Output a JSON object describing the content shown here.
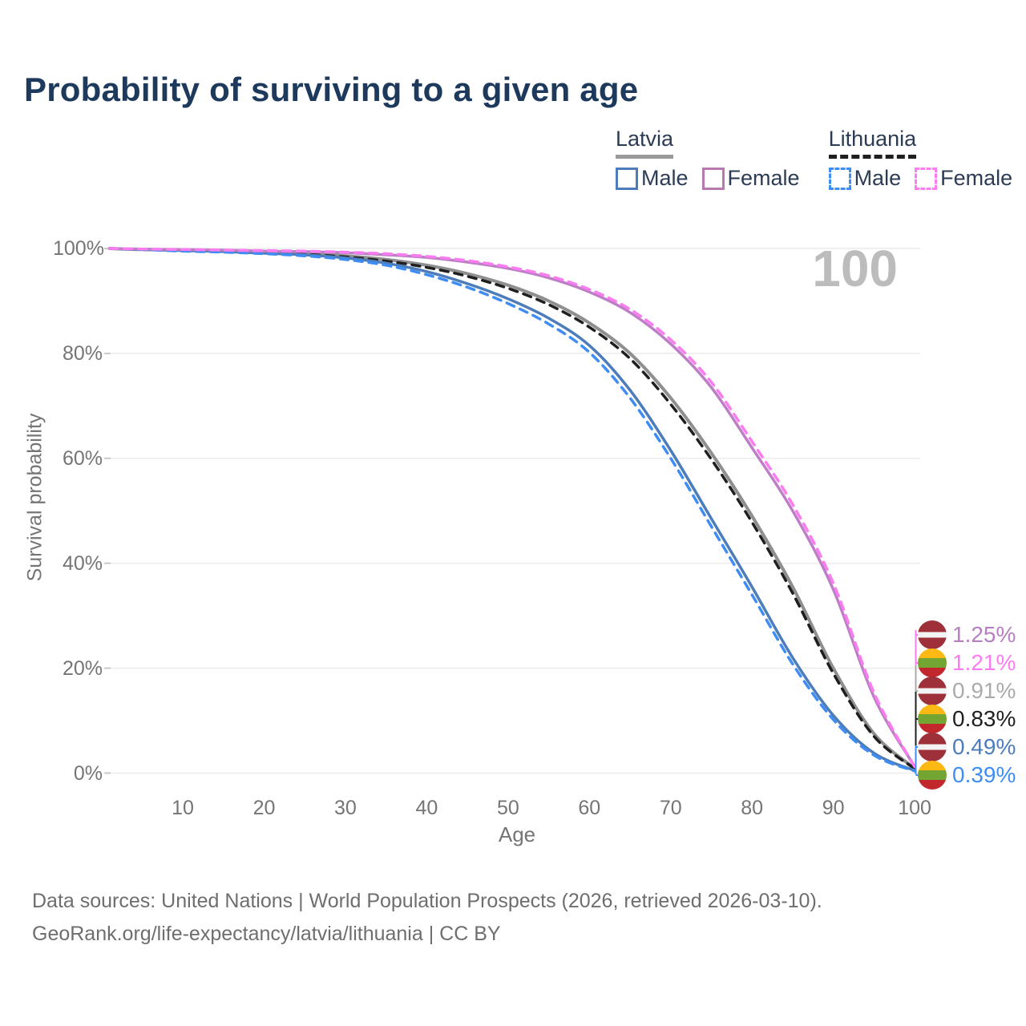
{
  "title": "Probability of surviving to a given age",
  "watermark_age": "100",
  "legend": {
    "groups": [
      {
        "label": "Latvia",
        "line_style": "solid",
        "line_color": "#9a9a9a",
        "items": [
          {
            "label": "Male",
            "color": "#4d7cba",
            "dash": false
          },
          {
            "label": "Female",
            "color": "#b878b0",
            "dash": false
          }
        ]
      },
      {
        "label": "Lithuania",
        "line_style": "dashed",
        "line_color": "#1f1f1f",
        "items": [
          {
            "label": "Male",
            "color": "#3f8df4",
            "dash": true
          },
          {
            "label": "Female",
            "color": "#fb7cf0",
            "dash": true
          }
        ]
      }
    ]
  },
  "axes": {
    "y_title": "Survival probability",
    "x_title": "Age",
    "y_ticks": [
      {
        "label": "100%",
        "value": 100
      },
      {
        "label": "80%",
        "value": 80
      },
      {
        "label": "60%",
        "value": 60
      },
      {
        "label": "40%",
        "value": 40
      },
      {
        "label": "20%",
        "value": 20
      },
      {
        "label": "0%",
        "value": 0
      }
    ],
    "x_ticks": [
      {
        "label": "10",
        "value": 10
      },
      {
        "label": "20",
        "value": 20
      },
      {
        "label": "30",
        "value": 30
      },
      {
        "label": "40",
        "value": 40
      },
      {
        "label": "50",
        "value": 50
      },
      {
        "label": "60",
        "value": 60
      },
      {
        "label": "70",
        "value": 70
      },
      {
        "label": "80",
        "value": 80
      },
      {
        "label": "90",
        "value": 90
      },
      {
        "label": "100",
        "value": 100
      }
    ]
  },
  "end_labels": [
    {
      "value": "1.25%",
      "color": "#b57fc2",
      "flag": "latvia"
    },
    {
      "value": "1.21%",
      "color": "#fb7cf0",
      "flag": "lithuania"
    },
    {
      "value": "0.91%",
      "color": "#ababab",
      "flag": "latvia"
    },
    {
      "value": "0.83%",
      "color": "#1f1f1f",
      "flag": "lithuania"
    },
    {
      "value": "0.49%",
      "color": "#4d7cba",
      "flag": "latvia"
    },
    {
      "value": "0.39%",
      "color": "#3f8df4",
      "flag": "lithuania"
    }
  ],
  "flags": {
    "latvia": [
      "#9E3039",
      "#F3F3F3",
      "#9E3039"
    ],
    "lithuania": [
      "#FDB913",
      "#73A533",
      "#C1272D"
    ]
  },
  "footer": {
    "line1": "Data sources: United Nations | World Population Prospects (2026, retrieved 2026-03-10).",
    "line2": "GeoRank.org/life-expectancy/latvia/lithuania | CC BY"
  },
  "chart_data": {
    "type": "line",
    "title": "Probability of surviving to a given age",
    "xlabel": "Age",
    "ylabel": "Survival probability",
    "xlim": [
      0,
      100
    ],
    "ylim": [
      0,
      100
    ],
    "grid": true,
    "legend_position": "top-right",
    "x": [
      1,
      5,
      10,
      15,
      20,
      25,
      30,
      35,
      40,
      45,
      50,
      55,
      60,
      65,
      70,
      75,
      80,
      85,
      90,
      95,
      100
    ],
    "series": [
      {
        "name": "Latvia Total",
        "style": "solid",
        "color": "#8f8f8f",
        "width": 4,
        "values": [
          100,
          99.8,
          99.7,
          99.5,
          99.3,
          99.0,
          98.6,
          97.9,
          96.8,
          95.2,
          93.0,
          90.0,
          85.8,
          80.0,
          71.5,
          61.0,
          49.0,
          35.5,
          20.0,
          7.5,
          0.91
        ]
      },
      {
        "name": "Lithuania Total",
        "style": "dashed",
        "color": "#1f1f1f",
        "width": 3.5,
        "values": [
          100,
          99.8,
          99.6,
          99.4,
          99.2,
          98.9,
          98.4,
          97.6,
          96.4,
          94.7,
          92.4,
          89.3,
          85.0,
          79.0,
          70.3,
          59.8,
          47.8,
          34.3,
          19.0,
          7.0,
          0.83
        ]
      },
      {
        "name": "Latvia Male",
        "style": "solid",
        "color": "#4d7cba",
        "width": 3.5,
        "values": [
          100,
          99.8,
          99.6,
          99.4,
          99.1,
          98.8,
          98.2,
          97.2,
          95.6,
          93.3,
          90.4,
          86.7,
          81.5,
          73.0,
          61.5,
          48.5,
          35.5,
          22.0,
          11.0,
          3.8,
          0.49
        ]
      },
      {
        "name": "Lithuania Male",
        "style": "dashed",
        "color": "#3f8df4",
        "width": 3.5,
        "values": [
          100,
          99.8,
          99.5,
          99.3,
          99.0,
          98.6,
          97.9,
          96.8,
          95.0,
          92.6,
          89.5,
          85.6,
          80.2,
          71.5,
          60.0,
          47.0,
          34.0,
          20.8,
          10.2,
          3.4,
          0.39
        ]
      },
      {
        "name": "Latvia Female",
        "style": "solid",
        "color": "#bd7ec6",
        "width": 3.5,
        "values": [
          100,
          99.9,
          99.8,
          99.7,
          99.5,
          99.4,
          99.2,
          98.8,
          98.3,
          97.4,
          96.2,
          94.4,
          91.7,
          87.8,
          81.8,
          73.5,
          62.0,
          50.0,
          35.0,
          14.5,
          1.25
        ]
      },
      {
        "name": "Lithuania Female",
        "style": "dashed",
        "color": "#fb7cf0",
        "width": 3.5,
        "values": [
          100,
          99.9,
          99.8,
          99.7,
          99.6,
          99.5,
          99.3,
          99.0,
          98.5,
          97.7,
          96.5,
          94.8,
          92.2,
          88.4,
          82.6,
          74.5,
          63.2,
          51.2,
          36.2,
          15.3,
          1.21
        ]
      }
    ],
    "end_values": {
      "latvia_female": "1.25%",
      "lithuania_female": "1.21%",
      "latvia_total": "0.91%",
      "lithuania_total": "0.83%",
      "latvia_male": "0.49%",
      "lithuania_male": "0.39%"
    }
  }
}
